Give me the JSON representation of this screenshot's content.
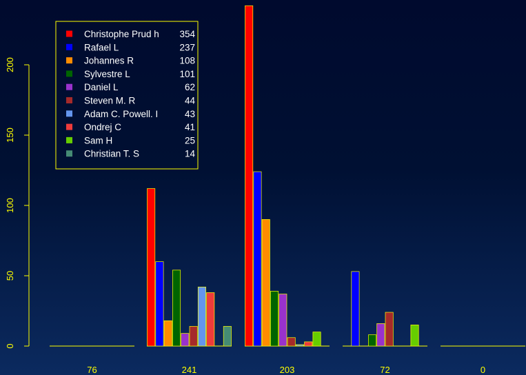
{
  "chart_data": {
    "type": "bar",
    "title": "",
    "xlabel": "",
    "ylabel": "",
    "ylim": [
      0,
      240
    ],
    "yticks": [
      0,
      50,
      100,
      150,
      200
    ],
    "categories": [
      "76",
      "241",
      "203",
      "72",
      "0"
    ],
    "series": [
      {
        "name": "Christophe Prud h",
        "total": "354",
        "color": "#ff0000",
        "values": [
          0,
          112,
          242,
          0,
          0
        ]
      },
      {
        "name": "Rafael L",
        "total": "237",
        "color": "#0000ff",
        "values": [
          0,
          60,
          124,
          53,
          0
        ]
      },
      {
        "name": "Johannes R",
        "total": "108",
        "color": "#ff8c00",
        "values": [
          0,
          18,
          90,
          0,
          0
        ]
      },
      {
        "name": "Sylvestre L",
        "total": "101",
        "color": "#006400",
        "values": [
          0,
          54,
          39,
          8,
          0
        ]
      },
      {
        "name": "Daniel L",
        "total": "62",
        "color": "#9932cc",
        "values": [
          0,
          9,
          37,
          16,
          0
        ]
      },
      {
        "name": "Steven M. R",
        "total": "44",
        "color": "#a52a2a",
        "values": [
          0,
          14,
          6,
          24,
          0
        ]
      },
      {
        "name": "Adam C. Powell. I",
        "total": "43",
        "color": "#6495ed",
        "values": [
          0,
          42,
          1,
          0,
          0
        ]
      },
      {
        "name": "Ondrej C",
        "total": "41",
        "color": "#ee3b3b",
        "values": [
          0,
          38,
          3,
          0,
          0
        ]
      },
      {
        "name": "Sam H",
        "total": "25",
        "color": "#66cd00",
        "values": [
          0,
          0,
          10,
          15,
          0
        ]
      },
      {
        "name": "Christian T. S",
        "total": "14",
        "color": "#458b74",
        "values": [
          0,
          14,
          0,
          0,
          0
        ]
      }
    ],
    "legend_position": "top-left",
    "grid": false,
    "colors": {
      "axis": "#ffff00",
      "text": "#ffff00",
      "bar_border": "#ffff00",
      "legend_text": "#ffffff"
    }
  }
}
